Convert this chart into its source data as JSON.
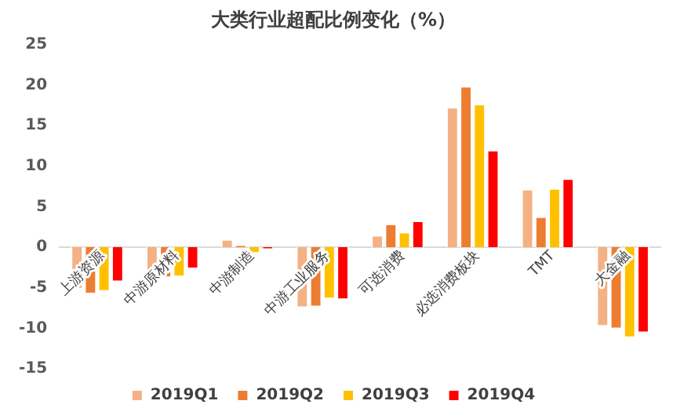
{
  "chart_data": {
    "type": "bar",
    "title": "大类行业超配比例变化（%）",
    "categories": [
      "上游资源",
      "中游原材料",
      "中游制造",
      "中游工业服务",
      "可选消费",
      "必选消费板块",
      "TMT",
      "大金融"
    ],
    "series": [
      {
        "name": "2019Q1",
        "color": "#f4b183",
        "values": [
          -5.2,
          -3.8,
          1.0,
          -7.5,
          1.5,
          17.3,
          7.2,
          -9.8
        ]
      },
      {
        "name": "2019Q2",
        "color": "#ed7d31",
        "values": [
          -5.8,
          -3.8,
          0.3,
          -7.4,
          2.9,
          19.9,
          3.8,
          -10.1
        ]
      },
      {
        "name": "2019Q3",
        "color": "#ffc000",
        "values": [
          -5.5,
          -3.7,
          -0.8,
          -6.4,
          1.9,
          17.7,
          7.3,
          -11.2
        ]
      },
      {
        "name": "2019Q4",
        "color": "#ff0000",
        "values": [
          -4.3,
          -2.7,
          -0.3,
          -6.5,
          3.3,
          12.0,
          8.5,
          -10.6
        ]
      }
    ],
    "ylim": [
      -15,
      25
    ],
    "yticks": [
      -15,
      -10,
      -5,
      0,
      5,
      10,
      15,
      20,
      25
    ],
    "grid": false,
    "legend": "bottom"
  }
}
